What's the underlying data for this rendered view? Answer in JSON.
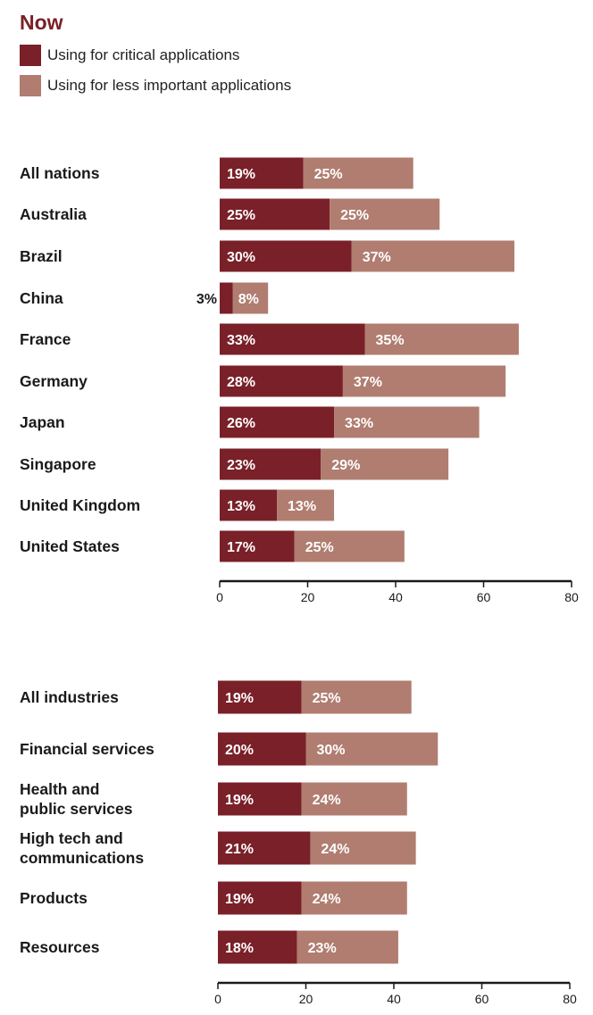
{
  "title": "Now",
  "colors": {
    "critical": "#7a2028",
    "less": "#b07d70",
    "title": "#7a2028"
  },
  "legend": [
    {
      "label": "Using for critical applications",
      "color": "#7a2028"
    },
    {
      "label": "Using for less important applications",
      "color": "#b07d70"
    }
  ],
  "chart_data": [
    {
      "type": "bar",
      "orientation": "horizontal",
      "stacked": true,
      "categories": [
        [
          "All nations"
        ],
        [
          "Australia"
        ],
        [
          "Brazil"
        ],
        [
          "China"
        ],
        [
          "France"
        ],
        [
          "Germany"
        ],
        [
          "Japan"
        ],
        [
          "Singapore"
        ],
        [
          "United Kingdom"
        ],
        [
          "United States"
        ]
      ],
      "series": [
        {
          "name": "Using for critical applications",
          "values": [
            19,
            25,
            30,
            3,
            33,
            28,
            26,
            23,
            13,
            17
          ]
        },
        {
          "name": "Using for less important applications",
          "values": [
            25,
            25,
            37,
            8,
            35,
            37,
            33,
            29,
            13,
            25
          ]
        }
      ],
      "value_labels": [
        [
          "19%",
          "25%"
        ],
        [
          "25%",
          "25%"
        ],
        [
          "30%",
          "37%"
        ],
        [
          "3%",
          "8%"
        ],
        [
          "33%",
          "35%"
        ],
        [
          "28%",
          "37%"
        ],
        [
          "26%",
          "33%"
        ],
        [
          "23%",
          "29%"
        ],
        [
          "13%",
          "13%"
        ],
        [
          "17%",
          "25%"
        ]
      ],
      "xlim": [
        0,
        80
      ],
      "xticks": [
        "0",
        "20",
        "40",
        "60",
        "80"
      ],
      "grid": false
    },
    {
      "type": "bar",
      "orientation": "horizontal",
      "stacked": true,
      "categories": [
        [
          "All industries"
        ],
        [
          "Financial services"
        ],
        [
          "Health and",
          "public services"
        ],
        [
          "High tech and",
          "communications"
        ],
        [
          "Products"
        ],
        [
          "Resources"
        ]
      ],
      "series": [
        {
          "name": "Using for critical applications",
          "values": [
            19,
            20,
            19,
            21,
            19,
            18
          ]
        },
        {
          "name": "Using for less important applications",
          "values": [
            25,
            30,
            24,
            24,
            24,
            23
          ]
        }
      ],
      "value_labels": [
        [
          "19%",
          "25%"
        ],
        [
          "20%",
          "30%"
        ],
        [
          "19%",
          "24%"
        ],
        [
          "21%",
          "24%"
        ],
        [
          "19%",
          "24%"
        ],
        [
          "18%",
          "23%"
        ]
      ],
      "xlim": [
        0,
        80
      ],
      "xticks": [
        "0",
        "20",
        "40",
        "60",
        "80"
      ],
      "grid": false
    }
  ]
}
